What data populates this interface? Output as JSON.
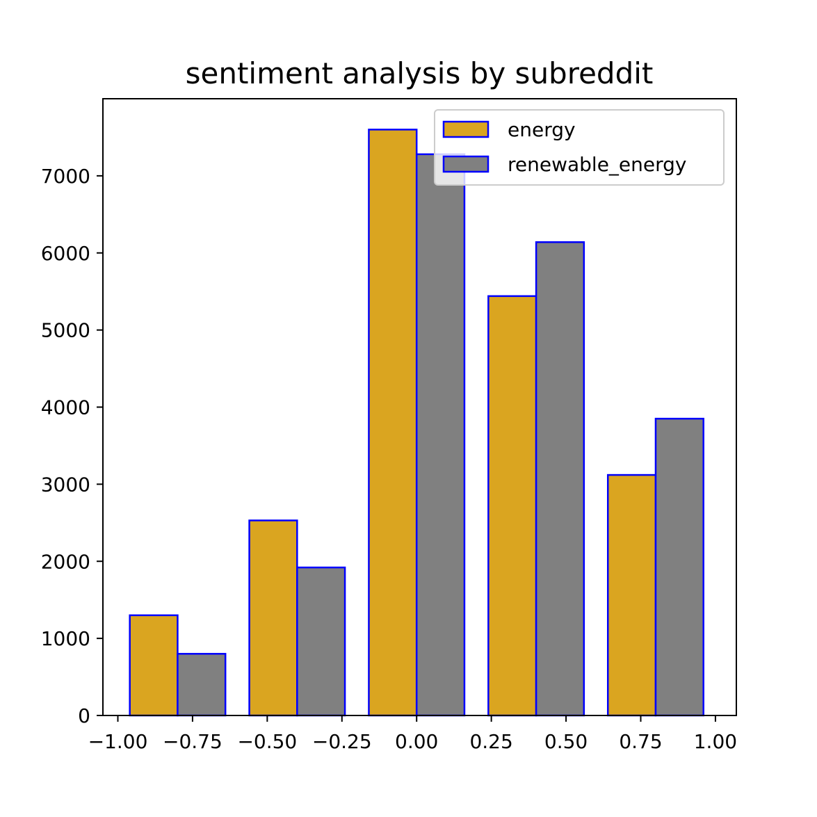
{
  "chart_data": {
    "type": "bar",
    "title": "sentiment analysis by subreddit",
    "xlabel": "",
    "ylabel": "",
    "xlim": [
      -1.05,
      1.07
    ],
    "ylim": [
      0,
      8000
    ],
    "bin_edges": [
      -0.96,
      -0.56,
      -0.16,
      0.24,
      0.64
    ],
    "bin_width": 0.32,
    "x_ticks": [
      -1.0,
      -0.75,
      -0.5,
      -0.25,
      0.0,
      0.25,
      0.5,
      0.75,
      1.0
    ],
    "x_tick_labels": [
      "−1.00",
      "−0.75",
      "−0.50",
      "−0.25",
      "0.00",
      "0.25",
      "0.50",
      "0.75",
      "1.00"
    ],
    "y_ticks": [
      0,
      1000,
      2000,
      3000,
      4000,
      5000,
      6000,
      7000
    ],
    "y_tick_labels": [
      "0",
      "1000",
      "2000",
      "3000",
      "4000",
      "5000",
      "6000",
      "7000"
    ],
    "grid": false,
    "legend_position": "top-right",
    "edge_color": "#0000ff",
    "series": [
      {
        "name": "energy",
        "color": "#daa520",
        "values": [
          1300,
          2530,
          7600,
          5440,
          3120
        ]
      },
      {
        "name": "renewable_energy",
        "color": "#808080",
        "values": [
          800,
          1920,
          7280,
          6140,
          3850
        ]
      }
    ]
  }
}
